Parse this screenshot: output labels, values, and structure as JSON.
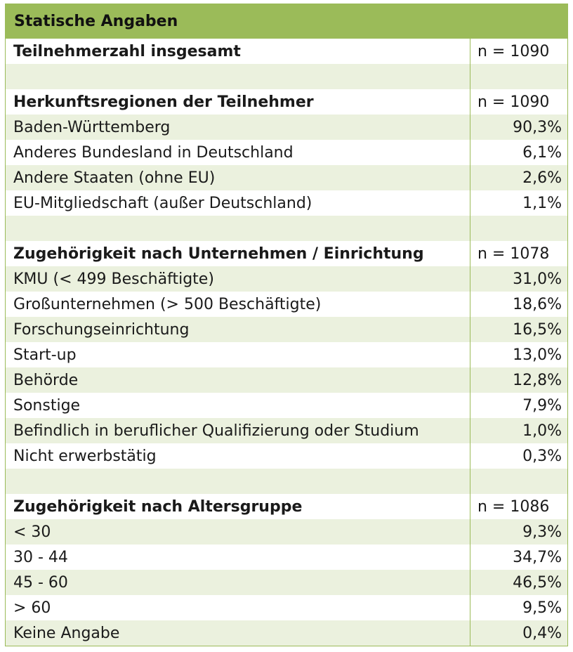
{
  "title": "Statische Angaben",
  "rows": [
    {
      "label": "Teilnehmerzahl insgesamt",
      "value": "n = 1090",
      "header": true
    },
    {
      "label": "",
      "value": "",
      "header": false
    },
    {
      "label": "Herkunftsregionen der Teilnehmer",
      "value": "n = 1090",
      "header": true
    },
    {
      "label": "Baden-Württemberg",
      "value": "90,3%",
      "header": false
    },
    {
      "label": "Anderes Bundesland in Deutschland",
      "value": "6,1%",
      "header": false
    },
    {
      "label": "Andere Staaten (ohne EU)",
      "value": "2,6%",
      "header": false
    },
    {
      "label": "EU-Mitgliedschaft (außer Deutschland)",
      "value": "1,1%",
      "header": false
    },
    {
      "label": "",
      "value": "",
      "header": false
    },
    {
      "label": "Zugehörigkeit nach Unternehmen / Einrichtung",
      "value": "n = 1078",
      "header": true
    },
    {
      "label": "KMU (< 499 Beschäftigte)",
      "value": "31,0%",
      "header": false
    },
    {
      "label": "Großunternehmen (> 500 Beschäftigte)",
      "value": "18,6%",
      "header": false
    },
    {
      "label": "Forschungseinrichtung",
      "value": "16,5%",
      "header": false
    },
    {
      "label": "Start-up",
      "value": "13,0%",
      "header": false
    },
    {
      "label": "Behörde",
      "value": "12,8%",
      "header": false
    },
    {
      "label": "Sonstige",
      "value": "7,9%",
      "header": false
    },
    {
      "label": "Befindlich in beruflicher Qualifizierung oder Studium",
      "value": "1,0%",
      "header": false
    },
    {
      "label": "Nicht erwerbstätig",
      "value": "0,3%",
      "header": false
    },
    {
      "label": "",
      "value": "",
      "header": false
    },
    {
      "label": "Zugehörigkeit nach Altersgruppe",
      "value": "n = 1086",
      "header": true
    },
    {
      "label": "< 30",
      "value": "9,3%",
      "header": false
    },
    {
      "label": "30 - 44",
      "value": "34,7%",
      "header": false
    },
    {
      "label": "45 - 60",
      "value": "46,5%",
      "header": false
    },
    {
      "label": "> 60",
      "value": "9,5%",
      "header": false
    },
    {
      "label": "Keine Angabe",
      "value": "0,4%",
      "header": false
    }
  ]
}
